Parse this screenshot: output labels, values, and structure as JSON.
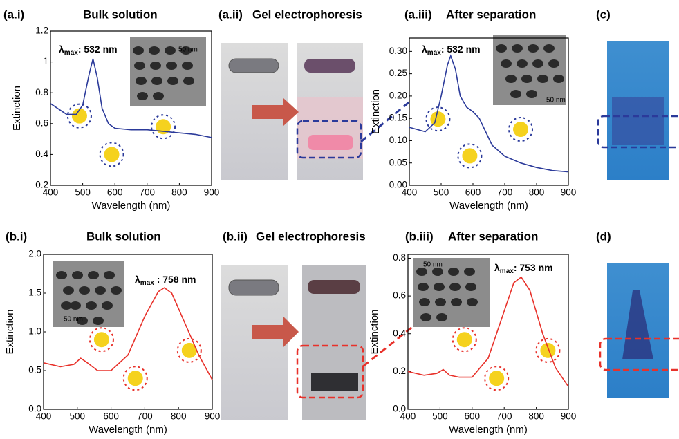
{
  "figure": {
    "gel_panels": [
      {
        "label": "(a.ii)",
        "title": "Gel electrophoresis"
      },
      {
        "label": "(b.ii)",
        "title": "Gel electrophoresis"
      }
    ],
    "photo_panels": [
      {
        "label": "(c)"
      },
      {
        "label": "(d)"
      }
    ]
  },
  "chart_data": [
    {
      "type": "line",
      "label": "(a.i)",
      "title": "Bulk solution",
      "xlabel": "Wavelength (nm)",
      "ylabel": "Extinction",
      "x": [
        400,
        450,
        480,
        500,
        520,
        532,
        545,
        560,
        580,
        600,
        650,
        700,
        750,
        800,
        850,
        900
      ],
      "series": [
        {
          "color": "#2b3a9a",
          "values": [
            0.73,
            0.66,
            0.66,
            0.72,
            0.92,
            1.02,
            0.9,
            0.7,
            0.6,
            0.57,
            0.56,
            0.56,
            0.55,
            0.54,
            0.53,
            0.51
          ]
        }
      ],
      "xlim": [
        400,
        900
      ],
      "ylim": [
        0.2,
        1.2
      ],
      "xticks": [
        400,
        500,
        600,
        700,
        800,
        900
      ],
      "yticks": [
        0.2,
        0.4,
        0.6,
        0.8,
        1.0,
        1.2
      ],
      "annotation": {
        "symbol": "λ",
        "subscript": "max",
        "text": ": 532 nm"
      },
      "inset_scale": "50 nm"
    },
    {
      "type": "line",
      "label": "(a.iii)",
      "title": "After separation",
      "xlabel": "Wavelength (nm)",
      "ylabel": "Extinction",
      "x": [
        400,
        450,
        480,
        500,
        520,
        530,
        545,
        560,
        580,
        600,
        620,
        640,
        660,
        700,
        750,
        800,
        850,
        900
      ],
      "series": [
        {
          "color": "#2b3a9a",
          "values": [
            0.13,
            0.12,
            0.14,
            0.2,
            0.27,
            0.29,
            0.26,
            0.2,
            0.175,
            0.165,
            0.15,
            0.12,
            0.09,
            0.065,
            0.05,
            0.04,
            0.033,
            0.03
          ]
        }
      ],
      "xlim": [
        400,
        900
      ],
      "ylim": [
        0,
        0.33
      ],
      "xticks": [
        400,
        500,
        600,
        700,
        800,
        900
      ],
      "yticks": [
        {
          "value": 0,
          "label": "0.00"
        },
        {
          "value": 0.05,
          "label": "0.05"
        },
        {
          "value": 0.1,
          "label": "0.10"
        },
        {
          "value": 0.15,
          "label": "0.15"
        },
        {
          "value": 0.2,
          "label": "0.20"
        },
        {
          "value": 0.25,
          "label": "0.25"
        },
        {
          "value": 0.3,
          "label": "0.30"
        }
      ],
      "annotation": {
        "symbol": "λ",
        "subscript": "max",
        "text": ": 532 nm"
      },
      "inset_scale": "50 nm"
    },
    {
      "type": "line",
      "label": "(b.i)",
      "title": "Bulk solution",
      "xlabel": "Wavelength (nm)",
      "ylabel": "Extinction",
      "x": [
        400,
        450,
        490,
        510,
        530,
        560,
        600,
        650,
        700,
        740,
        758,
        780,
        820,
        860,
        900
      ],
      "series": [
        {
          "color": "#e8312a",
          "values": [
            0.6,
            0.55,
            0.58,
            0.66,
            0.6,
            0.5,
            0.5,
            0.7,
            1.2,
            1.52,
            1.57,
            1.5,
            1.1,
            0.7,
            0.38
          ]
        }
      ],
      "xlim": [
        400,
        900
      ],
      "ylim": [
        0,
        2.0
      ],
      "xticks": [
        400,
        500,
        600,
        700,
        800,
        900
      ],
      "yticks": [
        {
          "value": 0,
          "label": "0.0"
        },
        {
          "value": 0.5,
          "label": "0.5"
        },
        {
          "value": 1,
          "label": "1.0"
        },
        {
          "value": 1.5,
          "label": "1.5"
        },
        {
          "value": 2,
          "label": "2.0"
        }
      ],
      "annotation": {
        "symbol": "λ",
        "subscript": "max",
        "text": " : 758 nm"
      },
      "inset_scale": "50 nm"
    },
    {
      "type": "line",
      "label": "(b.iii)",
      "title": "After separation",
      "xlabel": "Wavelength (nm)",
      "ylabel": "Extinction",
      "x": [
        400,
        450,
        490,
        510,
        530,
        560,
        600,
        650,
        700,
        730,
        753,
        780,
        820,
        860,
        900
      ],
      "series": [
        {
          "color": "#e8312a",
          "values": [
            0.2,
            0.18,
            0.19,
            0.21,
            0.18,
            0.17,
            0.17,
            0.27,
            0.52,
            0.67,
            0.7,
            0.63,
            0.4,
            0.22,
            0.12
          ]
        }
      ],
      "xlim": [
        400,
        900
      ],
      "ylim": [
        0,
        0.82
      ],
      "xticks": [
        400,
        500,
        600,
        700,
        800,
        900
      ],
      "yticks": [
        {
          "value": 0,
          "label": "0.0"
        },
        {
          "value": 0.2,
          "label": "0.2"
        },
        {
          "value": 0.4,
          "label": "0.4"
        },
        {
          "value": 0.6,
          "label": "0.6"
        },
        {
          "value": 0.8,
          "label": "0.8"
        }
      ],
      "annotation": {
        "symbol": "λ",
        "subscript": "max",
        "text": ": 753 nm"
      },
      "inset_scale": "50 nm"
    }
  ]
}
